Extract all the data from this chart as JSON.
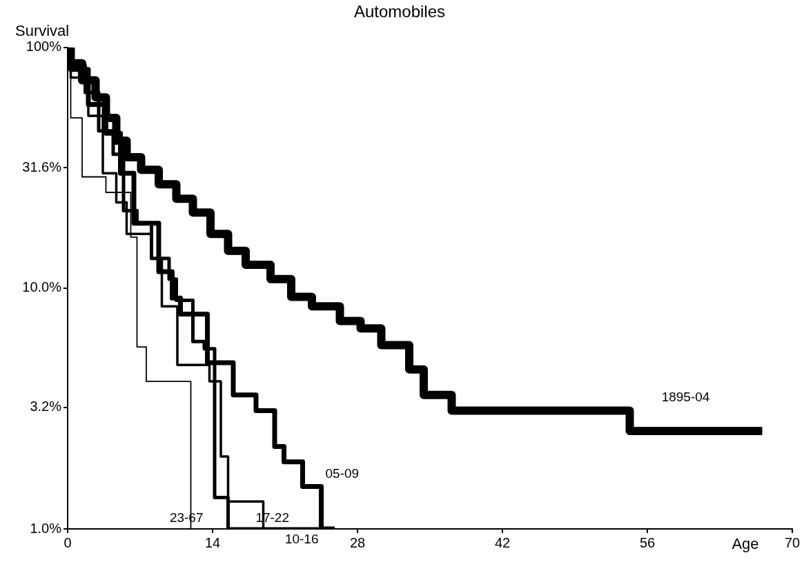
{
  "chart_data": {
    "type": "step",
    "title": "Automobiles",
    "xlabel": "Age",
    "ylabel": "Survival",
    "log": "y",
    "grid": false,
    "legend": false,
    "marker": "none",
    "line_style": "solid",
    "xlim": [
      0,
      70
    ],
    "xticks": [
      0,
      14,
      28,
      42,
      56,
      70
    ],
    "ylim": [
      1,
      100
    ],
    "yticks": [
      {
        "value": 100,
        "label": "100%"
      },
      {
        "value": 31.6,
        "label": "31.6%"
      },
      {
        "value": 10,
        "label": "10.0%"
      },
      {
        "value": 3.2,
        "label": "3.2%"
      },
      {
        "value": 1,
        "label": "1.0%"
      }
    ],
    "series": [
      {
        "name": "1895-04",
        "color": "#000000",
        "x": [
          0.3,
          1.4,
          2.7,
          3.7,
          4.7,
          5.7,
          7.1,
          8.8,
          10.5,
          12.1,
          13.8,
          15.5,
          17.2,
          19.6,
          21.6,
          23.6,
          26.3,
          28.3,
          30.3,
          33.0,
          34.4,
          37.1,
          54.3,
          65.1,
          67.1
        ],
        "values": [
          100,
          86,
          73,
          62,
          51,
          41,
          35,
          31,
          27,
          23.5,
          20.6,
          16.8,
          14.3,
          12.5,
          10.9,
          9.2,
          8.4,
          7.3,
          6.8,
          5.8,
          4.6,
          3.6,
          3.1,
          2.55,
          2.55
        ]
      },
      {
        "name": "05-09",
        "color": "#000000",
        "x": [
          0.3,
          2.0,
          3.7,
          5.1,
          6.4,
          8.8,
          10.1,
          10.9,
          13.5,
          16.0,
          18.2,
          20.0,
          20.9,
          22.7,
          24.5,
          25.3,
          25.8
        ],
        "values": [
          100,
          81,
          58,
          44,
          30,
          18.6,
          11.7,
          9.1,
          7.8,
          4.9,
          3.6,
          3.1,
          2.2,
          1.9,
          1.5,
          1.0,
          1.0
        ]
      },
      {
        "name": "10-16",
        "color": "#000000",
        "x": [
          0.3,
          1.7,
          3.0,
          4.4,
          5.4,
          6.7,
          8.1,
          9.8,
          10.5,
          12.1,
          13.2,
          14.2,
          15.5,
          24.5,
          24.8
        ],
        "values": [
          100,
          84,
          65,
          45,
          36,
          21,
          18.6,
          13.3,
          10.9,
          8.9,
          6.0,
          5.6,
          1.35,
          1.0,
          1.0
        ]
      },
      {
        "name": "17-22",
        "color": "#000000",
        "x": [
          0.3,
          2.0,
          3.4,
          4.7,
          5.7,
          8.1,
          9.1,
          10.6,
          13.7,
          14.8,
          15.5,
          18.9,
          21.8,
          22.0
        ],
        "values": [
          100,
          75,
          52,
          30,
          22.7,
          16.8,
          13.3,
          8.4,
          4.8,
          4.1,
          2.0,
          1.3,
          1.0,
          1.0
        ]
      },
      {
        "name": "23-67",
        "color": "#000000",
        "x": [
          0.3,
          1.4,
          3.7,
          6.1,
          6.7,
          7.6,
          11.9,
          13.5,
          13.6
        ],
        "values": [
          100,
          51,
          29,
          25,
          16.3,
          5.7,
          4.1,
          1.0,
          1.0
        ]
      }
    ]
  }
}
